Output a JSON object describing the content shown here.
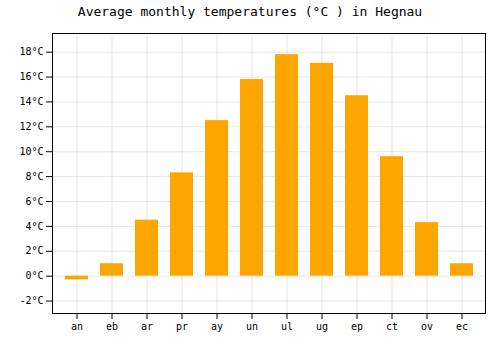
{
  "chart_data": {
    "type": "bar",
    "title": "Average monthly temperatures (°C ) in Hegnau",
    "categories": [
      "an",
      "eb",
      "ar",
      "pr",
      "ay",
      "un",
      "ul",
      "ug",
      "ep",
      "ct",
      "ov",
      "ec"
    ],
    "values": [
      -0.3,
      1.0,
      4.5,
      8.3,
      12.5,
      15.8,
      17.8,
      17.1,
      14.5,
      9.6,
      4.3,
      1.0
    ],
    "color": "#FFA500",
    "ylim": [
      -3,
      19.5
    ],
    "yticks": [
      {
        "value": -2,
        "label": "-2°C"
      },
      {
        "value": 0,
        "label": "0°C"
      },
      {
        "value": 2,
        "label": "2°C"
      },
      {
        "value": 4,
        "label": "4°C"
      },
      {
        "value": 6,
        "label": "6°C"
      },
      {
        "value": 8,
        "label": "8°C"
      },
      {
        "value": 10,
        "label": "10°C"
      },
      {
        "value": 12,
        "label": "12°C"
      },
      {
        "value": 14,
        "label": "14°C"
      },
      {
        "value": 16,
        "label": "16°C"
      },
      {
        "value": 18,
        "label": "18°C"
      }
    ],
    "grid": true
  }
}
